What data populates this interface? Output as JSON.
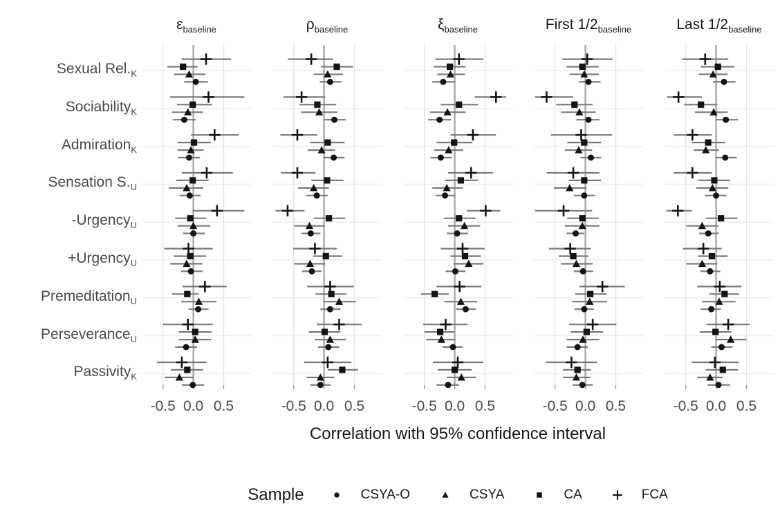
{
  "chart_data": {
    "type": "scatter",
    "subtype": "forest-plot-dot-ci",
    "title": "",
    "xlabel": "Correlation with 95% confidence interval",
    "x_tick_values": [
      -0.5,
      0.0,
      0.5
    ],
    "x_tick_labels": [
      "-0.5",
      "0.0",
      "0.5"
    ],
    "xlim": [
      -0.85,
      0.95
    ],
    "grid": true,
    "legend_position": "bottom",
    "legend": {
      "title": "Sample",
      "entries": [
        {
          "label": "CSYA-O",
          "marker": "circle"
        },
        {
          "label": "CSYA",
          "marker": "triangle"
        },
        {
          "label": "CA",
          "marker": "square"
        },
        {
          "label": "FCA",
          "marker": "plus"
        }
      ]
    },
    "samples_top_to_bottom": [
      {
        "key": "FCA",
        "marker": "plus"
      },
      {
        "key": "CA",
        "marker": "square"
      },
      {
        "key": "CSYA",
        "marker": "triangle"
      },
      {
        "key": "CSYA-O",
        "marker": "circle"
      }
    ],
    "categories": [
      {
        "text": "Sexual Rel.",
        "sub": "K"
      },
      {
        "text": "Sociability",
        "sub": "K"
      },
      {
        "text": "Admiration",
        "sub": "K"
      },
      {
        "text": "Sensation S.",
        "sub": "U"
      },
      {
        "text": "-Urgency",
        "sub": "U"
      },
      {
        "text": "+Urgency",
        "sub": "U"
      },
      {
        "text": "Premeditation",
        "sub": "U"
      },
      {
        "text": "Perseverance",
        "sub": "U"
      },
      {
        "text": "Passivity",
        "sub": "K"
      }
    ],
    "ci_note": "each point is [ci_low, estimate, ci_high]; rows follow categories order; points per row follow samples_top_to_bottom order",
    "panels": [
      {
        "title": "ε",
        "sub": "baseline",
        "rows": [
          [
            [
              -0.19,
              0.21,
              0.62
            ],
            [
              -0.43,
              -0.17,
              0.07
            ],
            [
              -0.32,
              -0.07,
              0.2
            ],
            [
              -0.15,
              0.04,
              0.24
            ]
          ],
          [
            [
              -0.38,
              0.25,
              0.84
            ],
            [
              -0.27,
              -0.01,
              0.31
            ],
            [
              -0.35,
              -0.09,
              0.16
            ],
            [
              -0.34,
              -0.15,
              0.04
            ]
          ],
          [
            [
              -0.04,
              0.35,
              0.75
            ],
            [
              -0.26,
              0.01,
              0.29
            ],
            [
              -0.26,
              -0.04,
              0.17
            ],
            [
              -0.25,
              -0.07,
              0.11
            ]
          ],
          [
            [
              -0.19,
              0.22,
              0.65
            ],
            [
              -0.28,
              -0.01,
              0.25
            ],
            [
              -0.4,
              -0.11,
              0.16
            ],
            [
              -0.23,
              -0.06,
              0.12
            ]
          ],
          [
            [
              -0.01,
              0.39,
              0.84
            ],
            [
              -0.3,
              -0.05,
              0.21
            ],
            [
              -0.26,
              0.0,
              0.28
            ],
            [
              -0.17,
              0.0,
              0.19
            ]
          ],
          [
            [
              -0.48,
              -0.08,
              0.32
            ],
            [
              -0.32,
              -0.05,
              0.21
            ],
            [
              -0.38,
              -0.11,
              0.15
            ],
            [
              -0.2,
              -0.04,
              0.15
            ]
          ],
          [
            [
              -0.18,
              0.19,
              0.55
            ],
            [
              -0.35,
              -0.1,
              0.09
            ],
            [
              -0.2,
              0.09,
              0.38
            ],
            [
              -0.08,
              0.08,
              0.25
            ]
          ],
          [
            [
              -0.5,
              -0.09,
              0.32
            ],
            [
              -0.24,
              0.03,
              0.3
            ],
            [
              -0.24,
              0.03,
              0.29
            ],
            [
              -0.3,
              -0.12,
              0.06
            ]
          ],
          [
            [
              -0.6,
              -0.19,
              0.22
            ],
            [
              -0.37,
              -0.1,
              0.16
            ],
            [
              -0.47,
              -0.23,
              0.01
            ],
            [
              -0.19,
              -0.01,
              0.18
            ]
          ]
        ]
      },
      {
        "title": "ρ",
        "sub": "baseline",
        "rows": [
          [
            [
              -0.6,
              -0.21,
              0.15
            ],
            [
              -0.05,
              0.21,
              0.48
            ],
            [
              -0.17,
              0.06,
              0.31
            ],
            [
              -0.07,
              0.1,
              0.29
            ]
          ],
          [
            [
              -0.67,
              -0.37,
              0.02
            ],
            [
              -0.41,
              -0.11,
              0.2
            ],
            [
              -0.38,
              -0.08,
              0.22
            ],
            [
              0.0,
              0.17,
              0.36
            ]
          ],
          [
            [
              -0.72,
              -0.44,
              -0.11
            ],
            [
              -0.23,
              0.06,
              0.34
            ],
            [
              -0.27,
              -0.04,
              0.18
            ],
            [
              -0.01,
              0.16,
              0.34
            ]
          ],
          [
            [
              -0.71,
              -0.44,
              -0.14
            ],
            [
              -0.21,
              0.05,
              0.32
            ],
            [
              -0.43,
              -0.17,
              0.08
            ],
            [
              -0.29,
              -0.12,
              0.06
            ]
          ],
          [
            [
              -0.8,
              -0.6,
              -0.32
            ],
            [
              -0.17,
              0.08,
              0.35
            ],
            [
              -0.49,
              -0.24,
              0.01
            ],
            [
              -0.37,
              -0.22,
              -0.06
            ]
          ],
          [
            [
              -0.51,
              -0.15,
              0.21
            ],
            [
              -0.18,
              0.03,
              0.3
            ],
            [
              -0.49,
              -0.23,
              0.02
            ],
            [
              -0.36,
              -0.2,
              -0.04
            ]
          ],
          [
            [
              -0.28,
              0.1,
              0.49
            ],
            [
              -0.14,
              0.12,
              0.37
            ],
            [
              -0.01,
              0.25,
              0.52
            ],
            [
              -0.06,
              0.1,
              0.27
            ]
          ],
          [
            [
              -0.12,
              0.25,
              0.62
            ],
            [
              -0.25,
              0.01,
              0.27
            ],
            [
              -0.15,
              0.1,
              0.36
            ],
            [
              -0.1,
              0.07,
              0.25
            ]
          ],
          [
            [
              -0.33,
              0.06,
              0.45
            ],
            [
              0.06,
              0.3,
              0.56
            ],
            [
              -0.29,
              -0.06,
              0.17
            ],
            [
              -0.23,
              -0.06,
              0.11
            ]
          ]
        ]
      },
      {
        "title": "ξ",
        "sub": "baseline",
        "rows": [
          [
            [
              -0.32,
              0.07,
              0.47
            ],
            [
              -0.35,
              -0.08,
              0.18
            ],
            [
              -0.29,
              -0.07,
              0.17
            ],
            [
              -0.37,
              -0.19,
              0.01
            ]
          ],
          [
            [
              0.33,
              0.68,
              0.85
            ],
            [
              -0.23,
              0.07,
              0.39
            ],
            [
              -0.41,
              -0.12,
              0.18
            ],
            [
              -0.44,
              -0.25,
              -0.06
            ]
          ],
          [
            [
              -0.07,
              0.3,
              0.68
            ],
            [
              -0.3,
              -0.01,
              0.29
            ],
            [
              -0.34,
              -0.1,
              0.14
            ],
            [
              -0.4,
              -0.23,
              -0.05
            ]
          ],
          [
            [
              -0.11,
              0.27,
              0.63
            ],
            [
              -0.16,
              0.1,
              0.38
            ],
            [
              -0.37,
              -0.13,
              0.13
            ],
            [
              -0.32,
              -0.16,
              0.01
            ]
          ],
          [
            [
              0.2,
              0.51,
              0.75
            ],
            [
              -0.18,
              0.07,
              0.34
            ],
            [
              -0.11,
              0.16,
              0.42
            ],
            [
              -0.13,
              0.04,
              0.22
            ]
          ],
          [
            [
              -0.23,
              0.13,
              0.49
            ],
            [
              -0.07,
              0.17,
              0.43
            ],
            [
              -0.02,
              0.23,
              0.47
            ],
            [
              -0.15,
              0.01,
              0.18
            ]
          ],
          [
            [
              -0.3,
              0.08,
              0.44
            ],
            [
              -0.56,
              -0.33,
              -0.1
            ],
            [
              -0.17,
              0.1,
              0.37
            ],
            [
              0.02,
              0.18,
              0.35
            ]
          ],
          [
            [
              -0.52,
              -0.15,
              0.21
            ],
            [
              -0.5,
              -0.24,
              -0.01
            ],
            [
              -0.47,
              -0.22,
              0.01
            ],
            [
              -0.2,
              -0.03,
              0.13
            ]
          ],
          [
            [
              -0.36,
              0.05,
              0.47
            ],
            [
              -0.28,
              0.0,
              0.28
            ],
            [
              -0.13,
              0.11,
              0.35
            ],
            [
              -0.3,
              -0.11,
              0.07
            ]
          ]
        ]
      },
      {
        "title": "First 1/2",
        "sub": "baseline",
        "rows": [
          [
            [
              -0.38,
              0.03,
              0.45
            ],
            [
              -0.31,
              -0.05,
              0.22
            ],
            [
              -0.26,
              -0.02,
              0.22
            ],
            [
              -0.11,
              0.05,
              0.25
            ]
          ],
          [
            [
              -0.83,
              -0.64,
              -0.2
            ],
            [
              -0.48,
              -0.18,
              0.12
            ],
            [
              -0.4,
              -0.1,
              0.17
            ],
            [
              -0.15,
              0.05,
              0.23
            ]
          ],
          [
            [
              -0.57,
              -0.07,
              0.44
            ],
            [
              -0.3,
              -0.02,
              0.26
            ],
            [
              -0.34,
              -0.11,
              0.11
            ],
            [
              -0.08,
              0.09,
              0.26
            ]
          ],
          [
            [
              -0.64,
              -0.2,
              0.23
            ],
            [
              -0.27,
              -0.02,
              0.26
            ],
            [
              -0.52,
              -0.26,
              0.02
            ],
            [
              -0.19,
              -0.02,
              0.16
            ]
          ],
          [
            [
              -0.83,
              -0.36,
              0.11
            ],
            [
              -0.3,
              -0.05,
              0.22
            ],
            [
              -0.34,
              -0.05,
              0.23
            ],
            [
              -0.31,
              -0.16,
              -0.02
            ]
          ],
          [
            [
              -0.6,
              -0.25,
              0.09
            ],
            [
              -0.44,
              -0.2,
              0.05
            ],
            [
              -0.4,
              -0.15,
              0.12
            ],
            [
              -0.19,
              -0.04,
              0.13
            ]
          ],
          [
            [
              -0.1,
              0.28,
              0.65
            ],
            [
              -0.17,
              0.08,
              0.35
            ],
            [
              -0.22,
              0.07,
              0.36
            ],
            [
              -0.18,
              -0.02,
              0.14
            ]
          ],
          [
            [
              -0.27,
              0.12,
              0.51
            ],
            [
              -0.24,
              0.02,
              0.29
            ],
            [
              -0.31,
              -0.04,
              0.23
            ],
            [
              -0.31,
              -0.13,
              0.04
            ]
          ],
          [
            [
              -0.65,
              -0.23,
              0.19
            ],
            [
              -0.37,
              -0.13,
              0.09
            ],
            [
              -0.37,
              -0.15,
              0.08
            ],
            [
              -0.21,
              -0.05,
              0.12
            ]
          ]
        ]
      },
      {
        "title": "Last 1/2",
        "sub": "baseline",
        "rows": [
          [
            [
              -0.56,
              -0.18,
              0.2
            ],
            [
              -0.25,
              0.03,
              0.3
            ],
            [
              -0.29,
              -0.05,
              0.19
            ],
            [
              -0.05,
              0.13,
              0.32
            ]
          ],
          [
            [
              -0.81,
              -0.62,
              -0.23
            ],
            [
              -0.53,
              -0.25,
              0.02
            ],
            [
              -0.35,
              -0.04,
              0.19
            ],
            [
              0.0,
              0.16,
              0.36
            ]
          ],
          [
            [
              -0.7,
              -0.39,
              -0.07
            ],
            [
              -0.4,
              -0.13,
              0.15
            ],
            [
              -0.37,
              -0.17,
              0.05
            ],
            [
              -0.01,
              0.15,
              0.34
            ]
          ],
          [
            [
              -0.7,
              -0.39,
              -0.07
            ],
            [
              -0.3,
              -0.03,
              0.23
            ],
            [
              -0.33,
              -0.06,
              0.2
            ],
            [
              -0.18,
              0.0,
              0.17
            ]
          ],
          [
            [
              -0.82,
              -0.63,
              -0.4
            ],
            [
              -0.17,
              0.08,
              0.35
            ],
            [
              -0.49,
              -0.23,
              0.04
            ],
            [
              -0.28,
              -0.13,
              0.04
            ]
          ],
          [
            [
              -0.55,
              -0.21,
              0.09
            ],
            [
              -0.3,
              -0.07,
              0.19
            ],
            [
              -0.49,
              -0.23,
              0.02
            ],
            [
              -0.26,
              -0.1,
              0.07
            ]
          ],
          [
            [
              -0.31,
              0.06,
              0.42
            ],
            [
              -0.11,
              0.14,
              0.38
            ],
            [
              -0.23,
              0.05,
              0.32
            ],
            [
              -0.25,
              -0.08,
              0.08
            ]
          ],
          [
            [
              -0.16,
              0.2,
              0.55
            ],
            [
              -0.27,
              -0.01,
              0.25
            ],
            [
              -0.01,
              0.24,
              0.5
            ],
            [
              -0.08,
              0.09,
              0.27
            ]
          ],
          [
            [
              -0.4,
              -0.02,
              0.37
            ],
            [
              -0.17,
              0.11,
              0.36
            ],
            [
              -0.31,
              -0.1,
              0.11
            ],
            [
              -0.14,
              0.04,
              0.23
            ]
          ]
        ]
      }
    ]
  },
  "colors": {
    "background": "#ffffff",
    "marker": "#141414",
    "errorbar": "#7a7a7a",
    "grid_vertical": "#e3e3e3",
    "grid_row": "#ececec",
    "zero_line": "#a9a9a9",
    "tick": "#9a9a9a",
    "axis_text": "#4a4a4a",
    "title_text": "#1a1a1a"
  }
}
